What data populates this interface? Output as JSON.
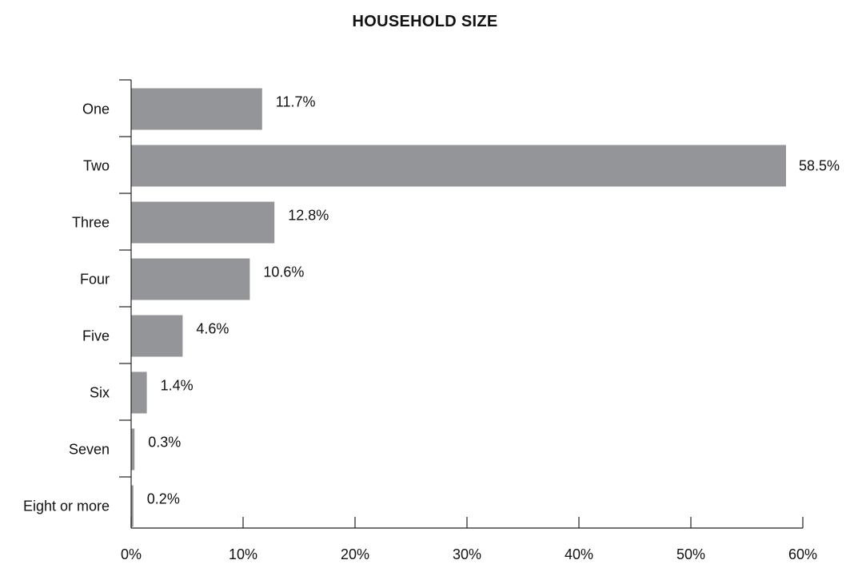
{
  "chart_data": {
    "type": "bar",
    "orientation": "horizontal",
    "title": "HOUSEHOLD SIZE",
    "xlabel": "",
    "ylabel": "",
    "categories": [
      "One",
      "Two",
      "Three",
      "Four",
      "Five",
      "Six",
      "Seven",
      "Eight or more"
    ],
    "values": [
      11.7,
      58.5,
      12.8,
      10.6,
      4.6,
      1.4,
      0.3,
      0.2
    ],
    "data_labels": [
      "11.7%",
      "58.5%",
      "12.8%",
      "10.6%",
      "4.6%",
      "1.4%",
      "0.3%",
      "0.2%"
    ],
    "xlim": [
      0,
      60
    ],
    "x_ticks": [
      0,
      10,
      20,
      30,
      40,
      50,
      60
    ],
    "x_tick_labels": [
      "0%",
      "10%",
      "20%",
      "30%",
      "40%",
      "50%",
      "60%"
    ],
    "grid": false,
    "legend": "none",
    "bar_color": "#939598"
  }
}
